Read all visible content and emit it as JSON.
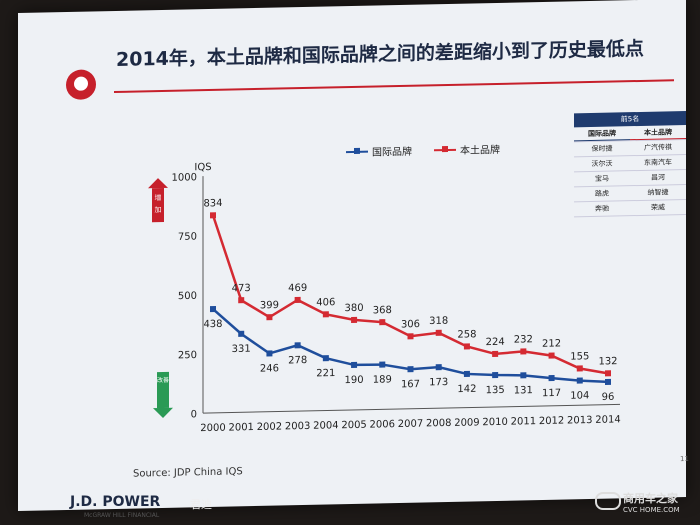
{
  "slide": {
    "title": "2014年，本土品牌和国际品牌之间的差距缩小到了历史最低点",
    "source": "Source: JDP China IQS",
    "page_number": "11",
    "footer_logo": "J.D. POWER",
    "footer_sub": "McGRAW HILL FINANCIAL",
    "footer_brand": "君迪",
    "watermark_main": "商用车之家",
    "watermark_sub": "CVC HOME.COM"
  },
  "arrows": {
    "up_text": "增加",
    "down_text": "改善"
  },
  "ranking": {
    "header": "前5名",
    "col_intl": "国际品牌",
    "col_local": "本土品牌",
    "rows": [
      {
        "intl": "保时捷",
        "local": "广汽传祺"
      },
      {
        "intl": "沃尔沃",
        "local": "东南汽车"
      },
      {
        "intl": "宝马",
        "local": "昌河"
      },
      {
        "intl": "路虎",
        "local": "纳智捷"
      },
      {
        "intl": "奔驰",
        "local": "荣威"
      }
    ]
  },
  "colors": {
    "international": "#1f4e9c",
    "local": "#d42a32",
    "accent": "#c6202b"
  },
  "chart_data": {
    "type": "line",
    "ylabel": "IQS",
    "xlabel": "",
    "ylim": [
      0,
      1000
    ],
    "yticks": [
      "0",
      "250",
      "500",
      "750",
      "1000"
    ],
    "x": [
      "2000",
      "2001",
      "2002",
      "2003",
      "2004",
      "2005",
      "2006",
      "2007",
      "2008",
      "2009",
      "2010",
      "2011",
      "2012",
      "2013",
      "2014"
    ],
    "series": [
      {
        "name": "国际品牌",
        "values": [
          438,
          331,
          246,
          278,
          221,
          190,
          189,
          167,
          173,
          142,
          135,
          131,
          117,
          104,
          96
        ]
      },
      {
        "name": "本土品牌",
        "values": [
          834,
          473,
          399,
          469,
          406,
          380,
          368,
          306,
          318,
          258,
          224,
          232,
          212,
          155,
          132
        ]
      }
    ],
    "legend": "top-center",
    "grid": false
  }
}
